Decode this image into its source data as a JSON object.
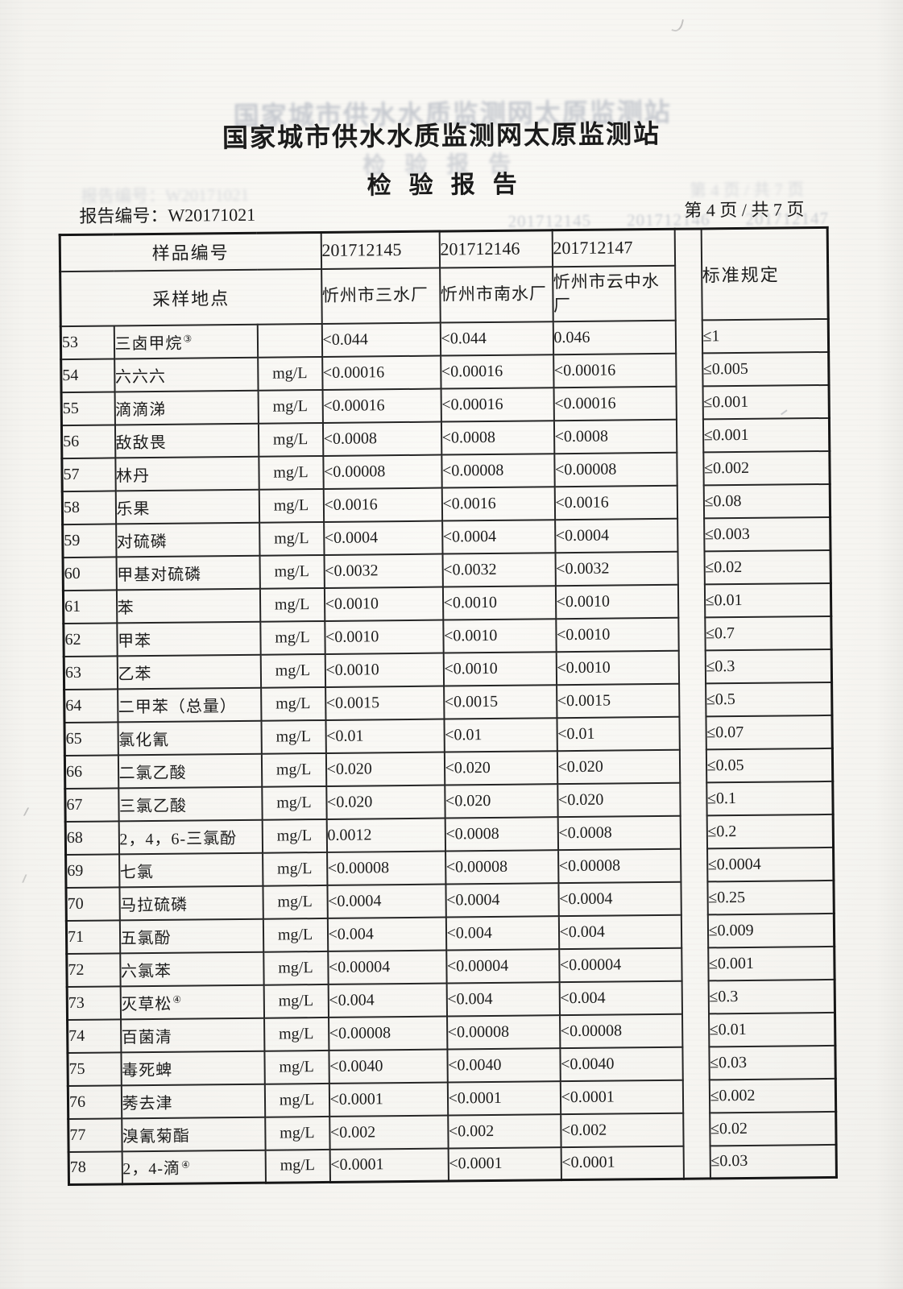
{
  "header": {
    "title": "国家城市供水水质监测网太原监测站",
    "subtitle": "检验报告"
  },
  "meta": {
    "report_line": "报告编号：W20171021",
    "page_line": "第 4 页 / 共 7 页"
  },
  "table": {
    "header": {
      "sample_no_label": "样品编号",
      "location_label": "采样地点",
      "standard_label": "标准规定",
      "sample_ids": [
        "201712145",
        "201712146",
        "201712147"
      ],
      "locations": [
        "忻州市三水厂",
        "忻州市南水厂",
        "忻州市云中水厂"
      ]
    },
    "unit_default": "mg/L",
    "rows": [
      {
        "no": "53",
        "name": "三卤甲烷",
        "sup": "③",
        "unit": "",
        "v1": "<0.044",
        "v2": "<0.044",
        "v3": "0.046",
        "std": "≤1"
      },
      {
        "no": "54",
        "name": "六六六",
        "unit": "mg/L",
        "v1": "<0.00016",
        "v2": "<0.00016",
        "v3": "<0.00016",
        "std": "≤0.005"
      },
      {
        "no": "55",
        "name": "滴滴涕",
        "unit": "mg/L",
        "v1": "<0.00016",
        "v2": "<0.00016",
        "v3": "<0.00016",
        "std": "≤0.001"
      },
      {
        "no": "56",
        "name": "敌敌畏",
        "unit": "mg/L",
        "v1": "<0.0008",
        "v2": "<0.0008",
        "v3": "<0.0008",
        "std": "≤0.001"
      },
      {
        "no": "57",
        "name": "林丹",
        "unit": "mg/L",
        "v1": "<0.00008",
        "v2": "<0.00008",
        "v3": "<0.00008",
        "std": "≤0.002"
      },
      {
        "no": "58",
        "name": "乐果",
        "unit": "mg/L",
        "v1": "<0.0016",
        "v2": "<0.0016",
        "v3": "<0.0016",
        "std": "≤0.08"
      },
      {
        "no": "59",
        "name": "对硫磷",
        "unit": "mg/L",
        "v1": "<0.0004",
        "v2": "<0.0004",
        "v3": "<0.0004",
        "std": "≤0.003"
      },
      {
        "no": "60",
        "name": "甲基对硫磷",
        "unit": "mg/L",
        "v1": "<0.0032",
        "v2": "<0.0032",
        "v3": "<0.0032",
        "std": "≤0.02"
      },
      {
        "no": "61",
        "name": "苯",
        "unit": "mg/L",
        "v1": "<0.0010",
        "v2": "<0.0010",
        "v3": "<0.0010",
        "std": "≤0.01"
      },
      {
        "no": "62",
        "name": "甲苯",
        "unit": "mg/L",
        "v1": "<0.0010",
        "v2": "<0.0010",
        "v3": "<0.0010",
        "std": "≤0.7"
      },
      {
        "no": "63",
        "name": "乙苯",
        "unit": "mg/L",
        "v1": "<0.0010",
        "v2": "<0.0010",
        "v3": "<0.0010",
        "std": "≤0.3"
      },
      {
        "no": "64",
        "name": "二甲苯（总量）",
        "unit": "mg/L",
        "v1": "<0.0015",
        "v2": "<0.0015",
        "v3": "<0.0015",
        "std": "≤0.5"
      },
      {
        "no": "65",
        "name": "氯化氰",
        "unit": "mg/L",
        "v1": "<0.01",
        "v2": "<0.01",
        "v3": "<0.01",
        "std": "≤0.07"
      },
      {
        "no": "66",
        "name": "二氯乙酸",
        "unit": "mg/L",
        "v1": "<0.020",
        "v2": "<0.020",
        "v3": "<0.020",
        "std": "≤0.05"
      },
      {
        "no": "67",
        "name": "三氯乙酸",
        "unit": "mg/L",
        "v1": "<0.020",
        "v2": "<0.020",
        "v3": "<0.020",
        "std": "≤0.1"
      },
      {
        "no": "68",
        "name": "2，4，6-三氯酚",
        "unit": "mg/L",
        "v1": "0.0012",
        "v2": "<0.0008",
        "v3": "<0.0008",
        "std": "≤0.2"
      },
      {
        "no": "69",
        "name": "七氯",
        "unit": "mg/L",
        "v1": "<0.00008",
        "v2": "<0.00008",
        "v3": "<0.00008",
        "std": "≤0.0004"
      },
      {
        "no": "70",
        "name": "马拉硫磷",
        "unit": "mg/L",
        "v1": "<0.0004",
        "v2": "<0.0004",
        "v3": "<0.0004",
        "std": "≤0.25"
      },
      {
        "no": "71",
        "name": "五氯酚",
        "unit": "mg/L",
        "v1": "<0.004",
        "v2": "<0.004",
        "v3": "<0.004",
        "std": "≤0.009"
      },
      {
        "no": "72",
        "name": "六氯苯",
        "unit": "mg/L",
        "v1": "<0.00004",
        "v2": "<0.00004",
        "v3": "<0.00004",
        "std": "≤0.001"
      },
      {
        "no": "73",
        "name": "灭草松",
        "sup": "④",
        "unit": "mg/L",
        "v1": "<0.004",
        "v2": "<0.004",
        "v3": "<0.004",
        "std": "≤0.3"
      },
      {
        "no": "74",
        "name": "百菌清",
        "unit": "mg/L",
        "v1": "<0.00008",
        "v2": "<0.00008",
        "v3": "<0.00008",
        "std": "≤0.01"
      },
      {
        "no": "75",
        "name": "毒死蜱",
        "unit": "mg/L",
        "v1": "<0.0040",
        "v2": "<0.0040",
        "v3": "<0.0040",
        "std": "≤0.03"
      },
      {
        "no": "76",
        "name": "莠去津",
        "unit": "mg/L",
        "v1": "<0.0001",
        "v2": "<0.0001",
        "v3": "<0.0001",
        "std": "≤0.002"
      },
      {
        "no": "77",
        "name": "溴氰菊酯",
        "unit": "mg/L",
        "v1": "<0.002",
        "v2": "<0.002",
        "v3": "<0.002",
        "std": "≤0.02"
      },
      {
        "no": "78",
        "name": "2，4-滴",
        "sup": "④",
        "unit": "mg/L",
        "v1": "<0.0001",
        "v2": "<0.0001",
        "v3": "<0.0001",
        "std": "≤0.03"
      }
    ]
  }
}
